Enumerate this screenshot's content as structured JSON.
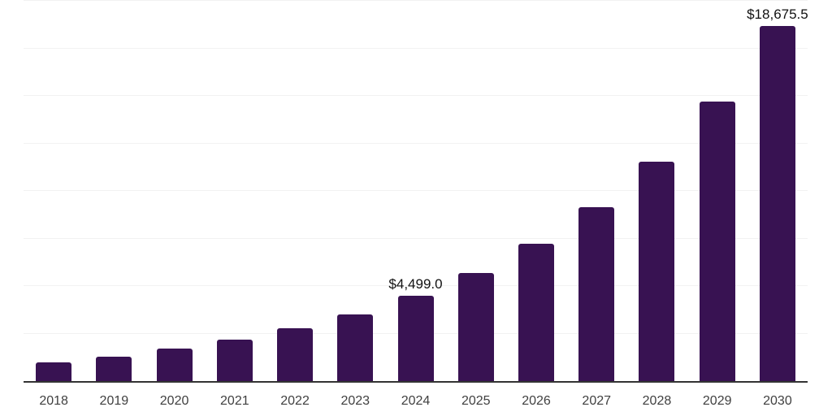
{
  "chart_data": {
    "type": "bar",
    "title": "",
    "xlabel": "",
    "ylabel": "",
    "categories": [
      "2018",
      "2019",
      "2020",
      "2021",
      "2022",
      "2023",
      "2024",
      "2025",
      "2026",
      "2027",
      "2028",
      "2029",
      "2030"
    ],
    "values": [
      975.0,
      1285.0,
      1690.0,
      2180.0,
      2790.0,
      3510.0,
      4499.0,
      5700.0,
      7210.0,
      9130.0,
      11560.0,
      14690.0,
      18675.5
    ],
    "data_labels": [
      {
        "category": "2024",
        "text": "$4,499.0"
      },
      {
        "category": "2030",
        "text": "$18,675.5"
      }
    ],
    "ylim": [
      0,
      20000
    ],
    "gridline_step": 2500,
    "grid": "horizontal",
    "legend": "none",
    "colors": {
      "bar": "#381252",
      "gridline": "#f2f2f2",
      "axis_line": "#333333",
      "tick_label": "#404040",
      "data_label": "#111111",
      "background": "#ffffff"
    }
  }
}
